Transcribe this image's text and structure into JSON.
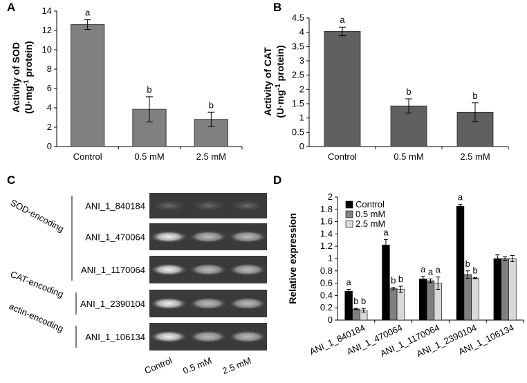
{
  "chart_data": [
    {
      "type": "bar",
      "panel": "A",
      "ylabel": "Activity of SOD",
      "ylabel_unit": [
        "(U·mg",
        "-1",
        " protein)"
      ],
      "categories": [
        "Control",
        "0.5 mM",
        "2.5 mM"
      ],
      "values": [
        12.6,
        3.85,
        2.8
      ],
      "errors": [
        0.5,
        1.3,
        0.75
      ],
      "letters": [
        "a",
        "b",
        "b"
      ],
      "color": "#808080",
      "ylim": [
        0,
        14
      ],
      "yticks": [
        0,
        2,
        4,
        6,
        8,
        10,
        12,
        14
      ]
    },
    {
      "type": "bar",
      "panel": "B",
      "ylabel": "Activity of CAT",
      "ylabel_unit": [
        "(U·mg",
        "-1",
        " protein)"
      ],
      "categories": [
        "Control",
        "0.5 mM",
        "2.5 mM"
      ],
      "values": [
        4.03,
        1.42,
        1.2
      ],
      "errors": [
        0.15,
        0.25,
        0.33
      ],
      "letters": [
        "a",
        "b",
        "b"
      ],
      "color": "#606060",
      "ylim": [
        0,
        4.5
      ],
      "yticks": [
        0,
        0.5,
        1,
        1.5,
        2,
        2.5,
        3,
        3.5,
        4,
        4.5
      ]
    },
    {
      "type": "grouped_bar",
      "panel": "D",
      "ylabel": "Relative expression",
      "categories": [
        "ANI_1_840184",
        "ANI_1_470064",
        "ANI_1_1170064",
        "ANI_1_2390104",
        "ANI_1_106134"
      ],
      "series": [
        {
          "name": "Control",
          "color": "#000000",
          "values": [
            0.47,
            1.22,
            0.67,
            1.85,
            1.0
          ],
          "errors": [
            0.03,
            0.09,
            0.04,
            0.03,
            0.06
          ],
          "letters": [
            "a",
            "a",
            "a",
            "a",
            null
          ]
        },
        {
          "name": "0.5 mM",
          "color": "#808080",
          "values": [
            0.18,
            0.51,
            0.64,
            0.74,
            1.0
          ],
          "errors": [
            0.01,
            0.02,
            0.03,
            0.06,
            0.03
          ],
          "letters": [
            "b",
            "b",
            "a",
            "b",
            null
          ]
        },
        {
          "name": "2.5 mM",
          "color": "#d9d9d9",
          "values": [
            0.16,
            0.5,
            0.6,
            0.68,
            1.0
          ],
          "errors": [
            0.03,
            0.05,
            0.1,
            0.01,
            0.05
          ],
          "letters": [
            "b",
            "b",
            "a",
            "b",
            null
          ]
        }
      ],
      "ylim": [
        0,
        2
      ],
      "yticks": [
        0,
        0.2,
        0.4,
        0.6,
        0.8,
        1,
        1.2,
        1.4,
        1.6,
        1.8,
        2
      ],
      "legend": "upper left"
    }
  ],
  "gel": {
    "panel": "C",
    "groups": [
      {
        "name": "SOD-encoding",
        "genes": [
          "ANI_1_840184",
          "ANI_1_470064",
          "ANI_1_1170064"
        ]
      },
      {
        "name": "CAT-encoding",
        "genes": [
          "ANI_1_2390104"
        ]
      },
      {
        "name": "actin-encoding",
        "genes": [
          "ANI_1_106134"
        ]
      }
    ],
    "lanes": [
      "Control",
      "0.5 mM",
      "2.5 mM"
    ]
  }
}
